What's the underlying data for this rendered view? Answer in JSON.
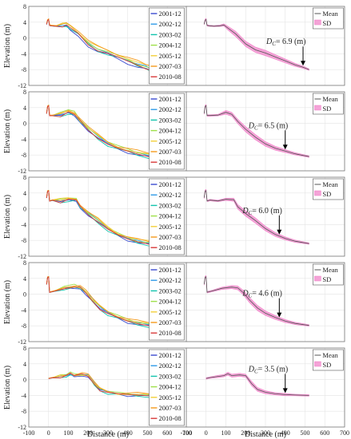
{
  "figure": {
    "xlabel": "Distance (m)",
    "ylabel": "Elevation (m)"
  },
  "chart_data": {
    "type": "line",
    "xlim": [
      -100,
      700
    ],
    "ylim": [
      -12,
      8
    ],
    "xticks": [
      -100,
      0,
      100,
      200,
      300,
      400,
      500,
      600,
      700
    ],
    "yticks": [
      -12,
      -8,
      -4,
      0,
      4,
      8
    ],
    "grid": true,
    "legend_left": [
      "2001-12",
      "2002-12",
      "2003-02",
      "2004-12",
      "2005-12",
      "2007-03",
      "2010-08"
    ],
    "legend_right": [
      "Mean",
      "SD"
    ],
    "colors": {
      "2001-12": "#3b4bd0",
      "2002-12": "#2f9be8",
      "2003-02": "#12c4ad",
      "2004-12": "#9ee04a",
      "2005-12": "#f3cf3a",
      "2007-03": "#f59a1c",
      "2010-08": "#d93a3a",
      "mean": "#555555",
      "sd": "#f07cc6"
    },
    "rows": [
      {
        "dc_label": "D",
        "dc_sub": "C",
        "dc_text": "= 6.9 (m)",
        "dc_x": 490,
        "mean": [
          [
            -10,
            3.5
          ],
          [
            -5,
            4.5
          ],
          [
            0,
            4.7
          ],
          [
            5,
            3.2
          ],
          [
            15,
            3.1
          ],
          [
            40,
            3.0
          ],
          [
            70,
            3.1
          ],
          [
            90,
            3.3
          ],
          [
            110,
            2.5
          ],
          [
            150,
            1.0
          ],
          [
            200,
            -1.5
          ],
          [
            250,
            -3.0
          ],
          [
            300,
            -3.8
          ],
          [
            350,
            -4.8
          ],
          [
            400,
            -5.8
          ],
          [
            450,
            -6.8
          ],
          [
            490,
            -7.4
          ],
          [
            520,
            -8.0
          ]
        ],
        "sd": [
          0.15,
          0.3,
          0.3,
          0.2,
          0.15,
          0.15,
          0.2,
          0.3,
          0.5,
          0.7,
          0.7,
          0.7,
          0.7,
          0.6,
          0.5,
          0.4,
          0.3,
          0.2
        ],
        "offsets": [
          -0.5,
          0.1,
          -0.2,
          0.3,
          0.6,
          0.8,
          -0.1
        ]
      },
      {
        "dc_label": "D",
        "dc_sub": "C",
        "dc_text": "= 6.5 (m)",
        "dc_x": 400,
        "mean": [
          [
            -10,
            2.5
          ],
          [
            -5,
            4.3
          ],
          [
            0,
            4.5
          ],
          [
            5,
            2.0
          ],
          [
            20,
            2.0
          ],
          [
            60,
            2.1
          ],
          [
            100,
            2.8
          ],
          [
            130,
            2.3
          ],
          [
            160,
            0.5
          ],
          [
            200,
            -1.5
          ],
          [
            250,
            -3.5
          ],
          [
            300,
            -5.2
          ],
          [
            350,
            -6.3
          ],
          [
            400,
            -7.0
          ],
          [
            450,
            -7.7
          ],
          [
            520,
            -8.4
          ]
        ],
        "sd": [
          0.2,
          0.3,
          0.3,
          0.2,
          0.2,
          0.2,
          0.5,
          0.5,
          0.6,
          0.7,
          0.7,
          0.6,
          0.5,
          0.4,
          0.3,
          0.2
        ],
        "offsets": [
          -0.2,
          0.2,
          -0.3,
          0.5,
          0.3,
          0.6,
          -0.1
        ]
      },
      {
        "dc_label": "D",
        "dc_sub": "C",
        "dc_text": "= 6.0 (m)",
        "dc_x": 370,
        "mean": [
          [
            -10,
            2.8
          ],
          [
            -5,
            4.5
          ],
          [
            0,
            4.6
          ],
          [
            5,
            2.0
          ],
          [
            20,
            2.2
          ],
          [
            60,
            2.0
          ],
          [
            100,
            2.4
          ],
          [
            140,
            2.3
          ],
          [
            160,
            0.5
          ],
          [
            200,
            -1.2
          ],
          [
            250,
            -3.0
          ],
          [
            300,
            -5.0
          ],
          [
            350,
            -6.5
          ],
          [
            400,
            -7.5
          ],
          [
            450,
            -8.2
          ],
          [
            520,
            -8.8
          ]
        ],
        "sd": [
          0.2,
          0.3,
          0.3,
          0.2,
          0.2,
          0.2,
          0.3,
          0.4,
          0.6,
          0.7,
          0.7,
          0.6,
          0.5,
          0.4,
          0.3,
          0.2
        ],
        "offsets": [
          -0.3,
          0.1,
          -0.4,
          0.2,
          0.4,
          0.3,
          -0.2
        ]
      },
      {
        "dc_label": "D",
        "dc_sub": "C",
        "dc_text": "= 4.6 (m)",
        "dc_x": 370,
        "mean": [
          [
            -10,
            2.5
          ],
          [
            -5,
            4.3
          ],
          [
            0,
            4.4
          ],
          [
            5,
            0.5
          ],
          [
            30,
            0.8
          ],
          [
            80,
            1.5
          ],
          [
            130,
            1.8
          ],
          [
            160,
            1.6
          ],
          [
            190,
            0.3
          ],
          [
            220,
            -1.5
          ],
          [
            260,
            -3.5
          ],
          [
            300,
            -4.8
          ],
          [
            350,
            -5.9
          ],
          [
            400,
            -6.8
          ],
          [
            450,
            -7.4
          ],
          [
            520,
            -7.9
          ]
        ],
        "sd": [
          0.2,
          0.3,
          0.3,
          0.2,
          0.2,
          0.3,
          0.4,
          0.5,
          0.6,
          0.7,
          0.7,
          0.6,
          0.5,
          0.4,
          0.3,
          0.2
        ],
        "offsets": [
          -0.2,
          0.2,
          -0.3,
          0.4,
          0.3,
          0.5,
          -0.1
        ]
      },
      {
        "dc_label": "D",
        "dc_sub": "C",
        "dc_text": "= 3.5 (m)",
        "dc_x": 400,
        "mean": [
          [
            0,
            0.3
          ],
          [
            20,
            0.5
          ],
          [
            60,
            0.8
          ],
          [
            90,
            1.0
          ],
          [
            110,
            1.5
          ],
          [
            130,
            1.0
          ],
          [
            170,
            1.2
          ],
          [
            200,
            1.0
          ],
          [
            230,
            -1.0
          ],
          [
            260,
            -2.5
          ],
          [
            300,
            -3.2
          ],
          [
            350,
            -3.6
          ],
          [
            400,
            -3.8
          ],
          [
            450,
            -3.9
          ],
          [
            520,
            -4.0
          ]
        ],
        "sd": [
          0.2,
          0.2,
          0.3,
          0.3,
          0.4,
          0.4,
          0.4,
          0.4,
          0.6,
          0.5,
          0.4,
          0.3,
          0.3,
          0.2,
          0.2
        ],
        "offsets": [
          -0.1,
          0.1,
          -0.2,
          0.2,
          0.1,
          0.3,
          -0.05
        ]
      }
    ]
  }
}
